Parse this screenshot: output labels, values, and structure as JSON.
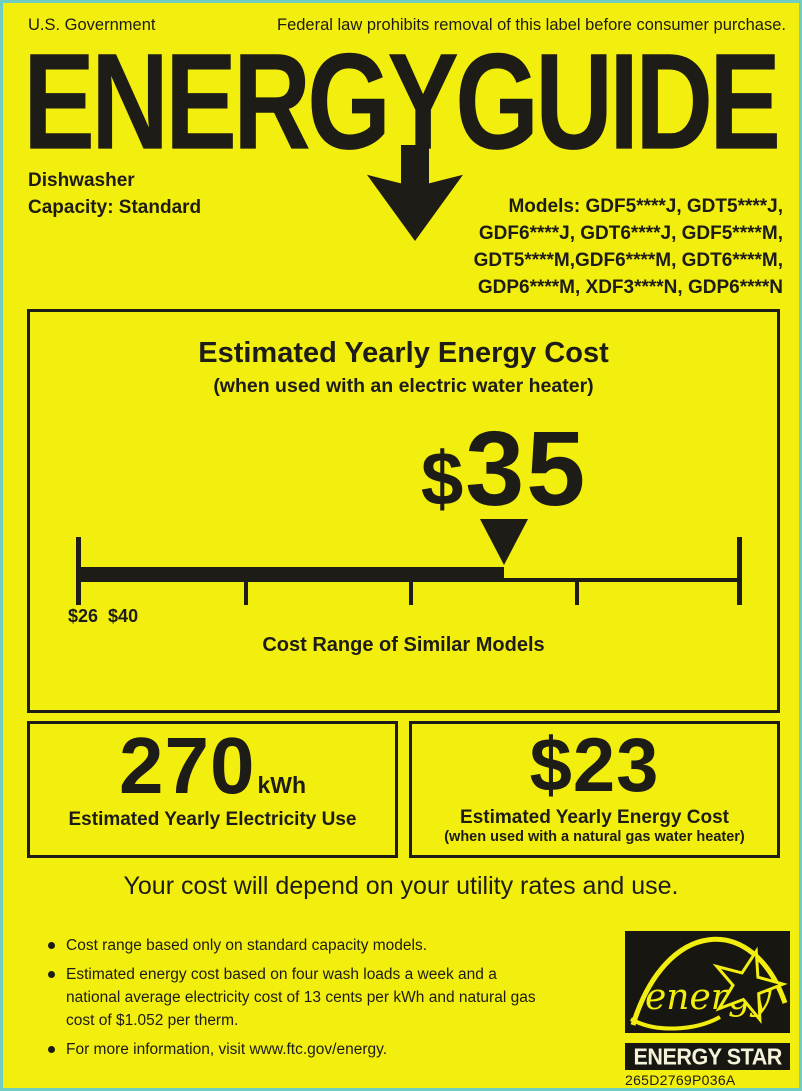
{
  "colors": {
    "background": "#f2ee0e",
    "ink": "#1e1c17",
    "outer_border": "#6fcdc1"
  },
  "header": {
    "government": "U.S. Government",
    "federal_notice": "Federal law prohibits removal of this label before consumer purchase.",
    "title": "ENERGYGUIDE",
    "appliance_lines": [
      "Dishwasher",
      "Capacity: Standard"
    ],
    "models_lines": [
      "Models: GDF5****J, GDT5****J,",
      "GDF6****J, GDT6****J, GDF5****M,",
      "GDT5****M,GDF6****M, GDT6****M,",
      "GDP6****M, XDF3****N, GDP6****N"
    ]
  },
  "main_box": {
    "title": "Estimated Yearly Energy Cost",
    "subtitle": "(when used with an electric water heater)",
    "cost_dollar_sign": "$",
    "cost_number": "35",
    "range_min": 26,
    "range_max": 40,
    "value": 35,
    "range_low_label": "$26",
    "range_high_label": "$40",
    "caption": "Cost Range of Similar Models"
  },
  "electricity_box": {
    "value": "270",
    "unit": "kWh",
    "label": "Estimated Yearly Electricity Use"
  },
  "gas_box": {
    "value": "$23",
    "label": "Estimated Yearly Energy Cost",
    "sublabel": "(when used with a natural gas water heater)"
  },
  "footer": {
    "utility_note": "Your cost will depend on your utility rates and use.",
    "bullets": [
      [
        "Cost range based only on standard capacity models."
      ],
      [
        "Estimated energy cost based on four wash loads a week and a",
        "national average electricity cost of 13 cents per kWh and natural gas",
        "cost of $1.052 per therm."
      ],
      [
        "For more information, visit www.ftc.gov/energy."
      ]
    ],
    "energy_star": {
      "script_word": "energy",
      "label": "ENERGY STAR"
    },
    "part_number": "265D2769P036A"
  }
}
